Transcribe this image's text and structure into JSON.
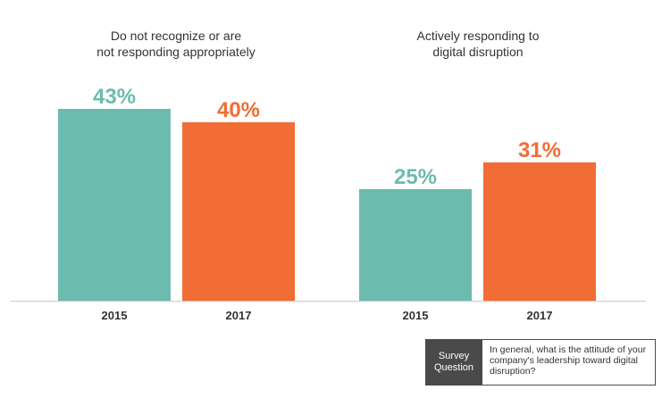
{
  "chart_data": {
    "type": "bar",
    "groups": [
      "Do not recognize or are not responding appropriately",
      "Actively responding to digital disruption"
    ],
    "categories": [
      "2015",
      "2017"
    ],
    "series": [
      {
        "name": "2015",
        "color": "#6bbcae",
        "values": [
          43,
          25
        ],
        "labels": [
          "43%",
          "25%"
        ]
      },
      {
        "name": "2017",
        "color": "#f26d35",
        "values": [
          40,
          31
        ],
        "labels": [
          "40%",
          "31%"
        ]
      }
    ],
    "ylim": [
      0,
      50
    ],
    "grid": false
  },
  "titles": {
    "group1_line1": "Do not recognize or are",
    "group1_line2": "not responding appropriately",
    "group2_line1": "Actively responding to",
    "group2_line2": "digital disruption"
  },
  "survey": {
    "label_line1": "Survey",
    "label_line2": "Question",
    "question": "In general, what is the attitude of your company's leadership toward digital disruption?"
  }
}
